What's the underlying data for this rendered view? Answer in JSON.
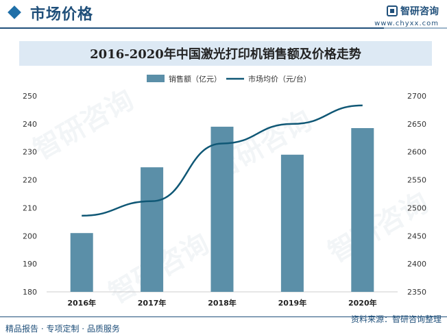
{
  "header": {
    "title": "市场价格",
    "brand_name": "智研咨询",
    "brand_url": "www.chyxx.com"
  },
  "footer": {
    "left_text": "精品报告 · 专项定制 · 品质服务",
    "source_text": "资料来源：智研咨询整理"
  },
  "watermark_text": "智研咨询",
  "colors": {
    "bar": "#5b8fa8",
    "line": "#0f5775",
    "accent": "#1f4f7a"
  },
  "chart_data": {
    "type": "bar+line",
    "title": "2016-2020年中国激光打印机销售额及价格走势",
    "categories": [
      "2016年",
      "2017年",
      "2018年",
      "2019年",
      "2020年"
    ],
    "series": [
      {
        "name": "销售额（亿元）",
        "type": "bar",
        "axis": "left",
        "values": [
          201,
          224.5,
          239,
          229,
          238.5
        ]
      },
      {
        "name": "市场均价（元/台）",
        "type": "line",
        "axis": "right",
        "values": [
          2486,
          2512,
          2615,
          2650,
          2683
        ]
      }
    ],
    "y_left": {
      "min": 180,
      "max": 250,
      "step": 10,
      "ticks": [
        "180",
        "190",
        "200",
        "210",
        "220",
        "230",
        "240",
        "250"
      ]
    },
    "y_right": {
      "min": 2350,
      "max": 2700,
      "step": 50,
      "ticks": [
        "2350",
        "2400",
        "2450",
        "2500",
        "2550",
        "2600",
        "2650",
        "2700"
      ]
    },
    "legend_position": "top-center"
  }
}
